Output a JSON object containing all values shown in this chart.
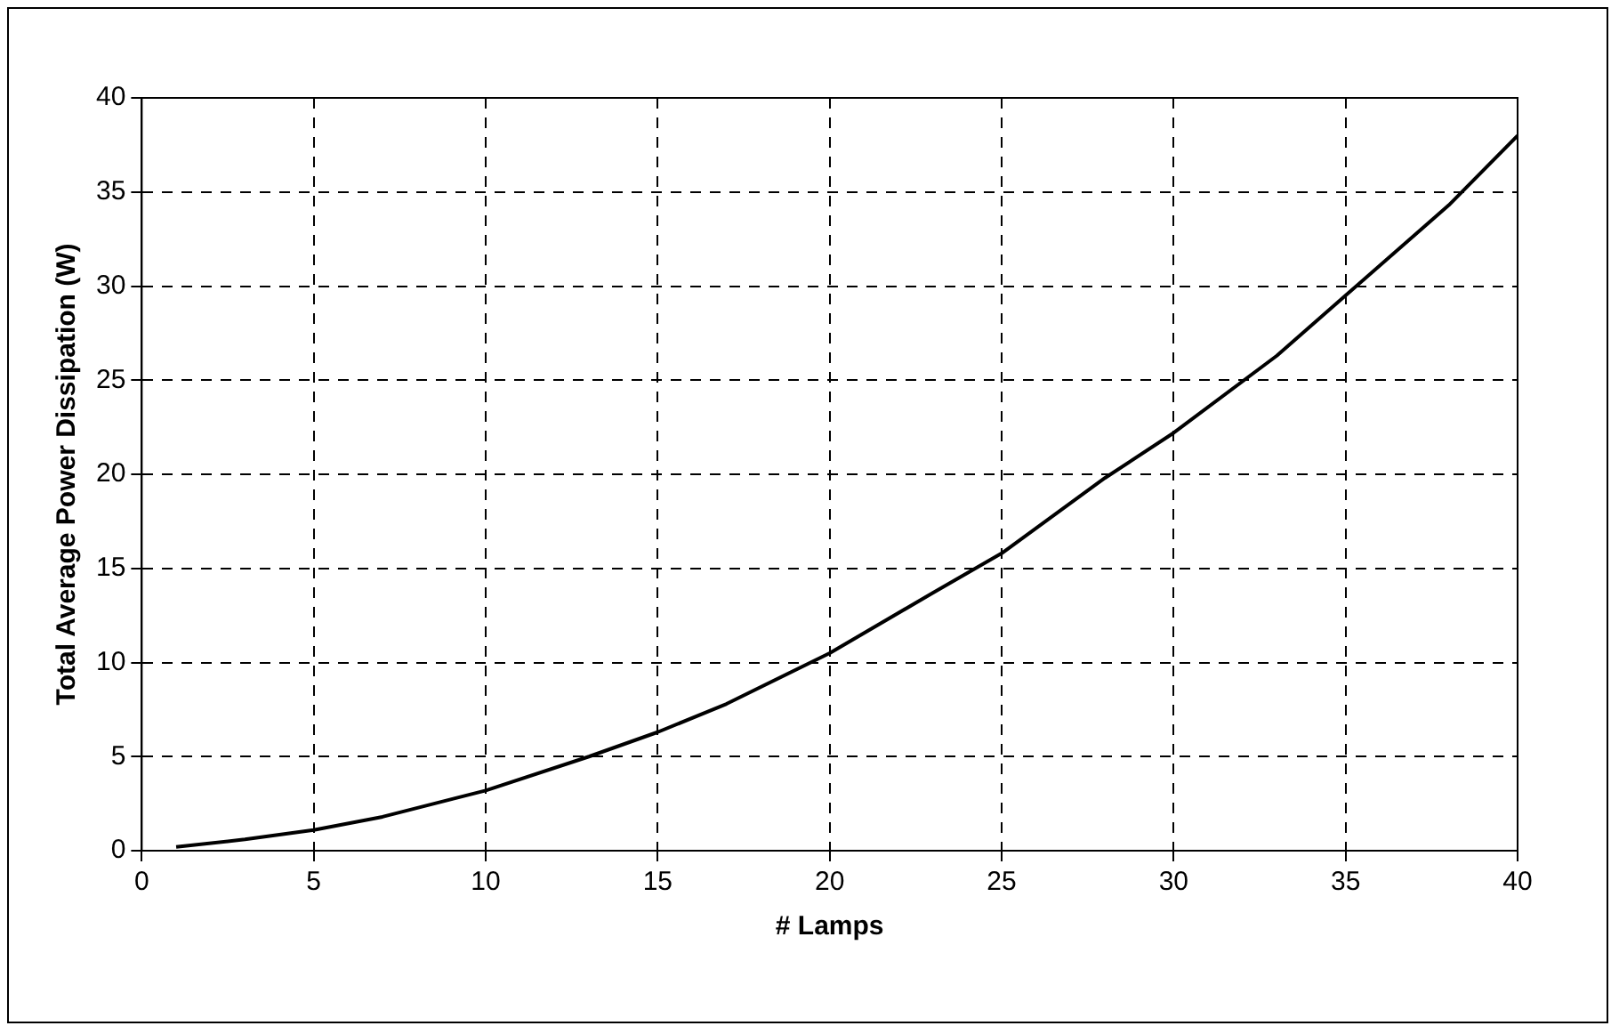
{
  "chart_data": {
    "type": "line",
    "xlabel": "# Lamps",
    "ylabel": "Total Average Power Dissipation (W)",
    "x": [
      1,
      3,
      5,
      7,
      10,
      13,
      15,
      17,
      20,
      23,
      25,
      28,
      30,
      33,
      35,
      38,
      40
    ],
    "series": [
      {
        "color": "#000000",
        "values": [
          0.2,
          0.6,
          1.1,
          1.8,
          3.2,
          5.0,
          6.3,
          7.8,
          10.5,
          13.7,
          15.8,
          19.8,
          22.2,
          26.3,
          29.5,
          34.3,
          38
        ]
      }
    ],
    "xlim": [
      0,
      40
    ],
    "xticks": [
      0,
      5,
      10,
      15,
      20,
      25,
      30,
      35,
      40
    ],
    "ylim": [
      0,
      40
    ],
    "yticks": [
      0,
      5,
      10,
      15,
      20,
      25,
      30,
      35,
      40
    ],
    "grid": true,
    "legend": false,
    "marker": "none",
    "line_style": "solid"
  }
}
